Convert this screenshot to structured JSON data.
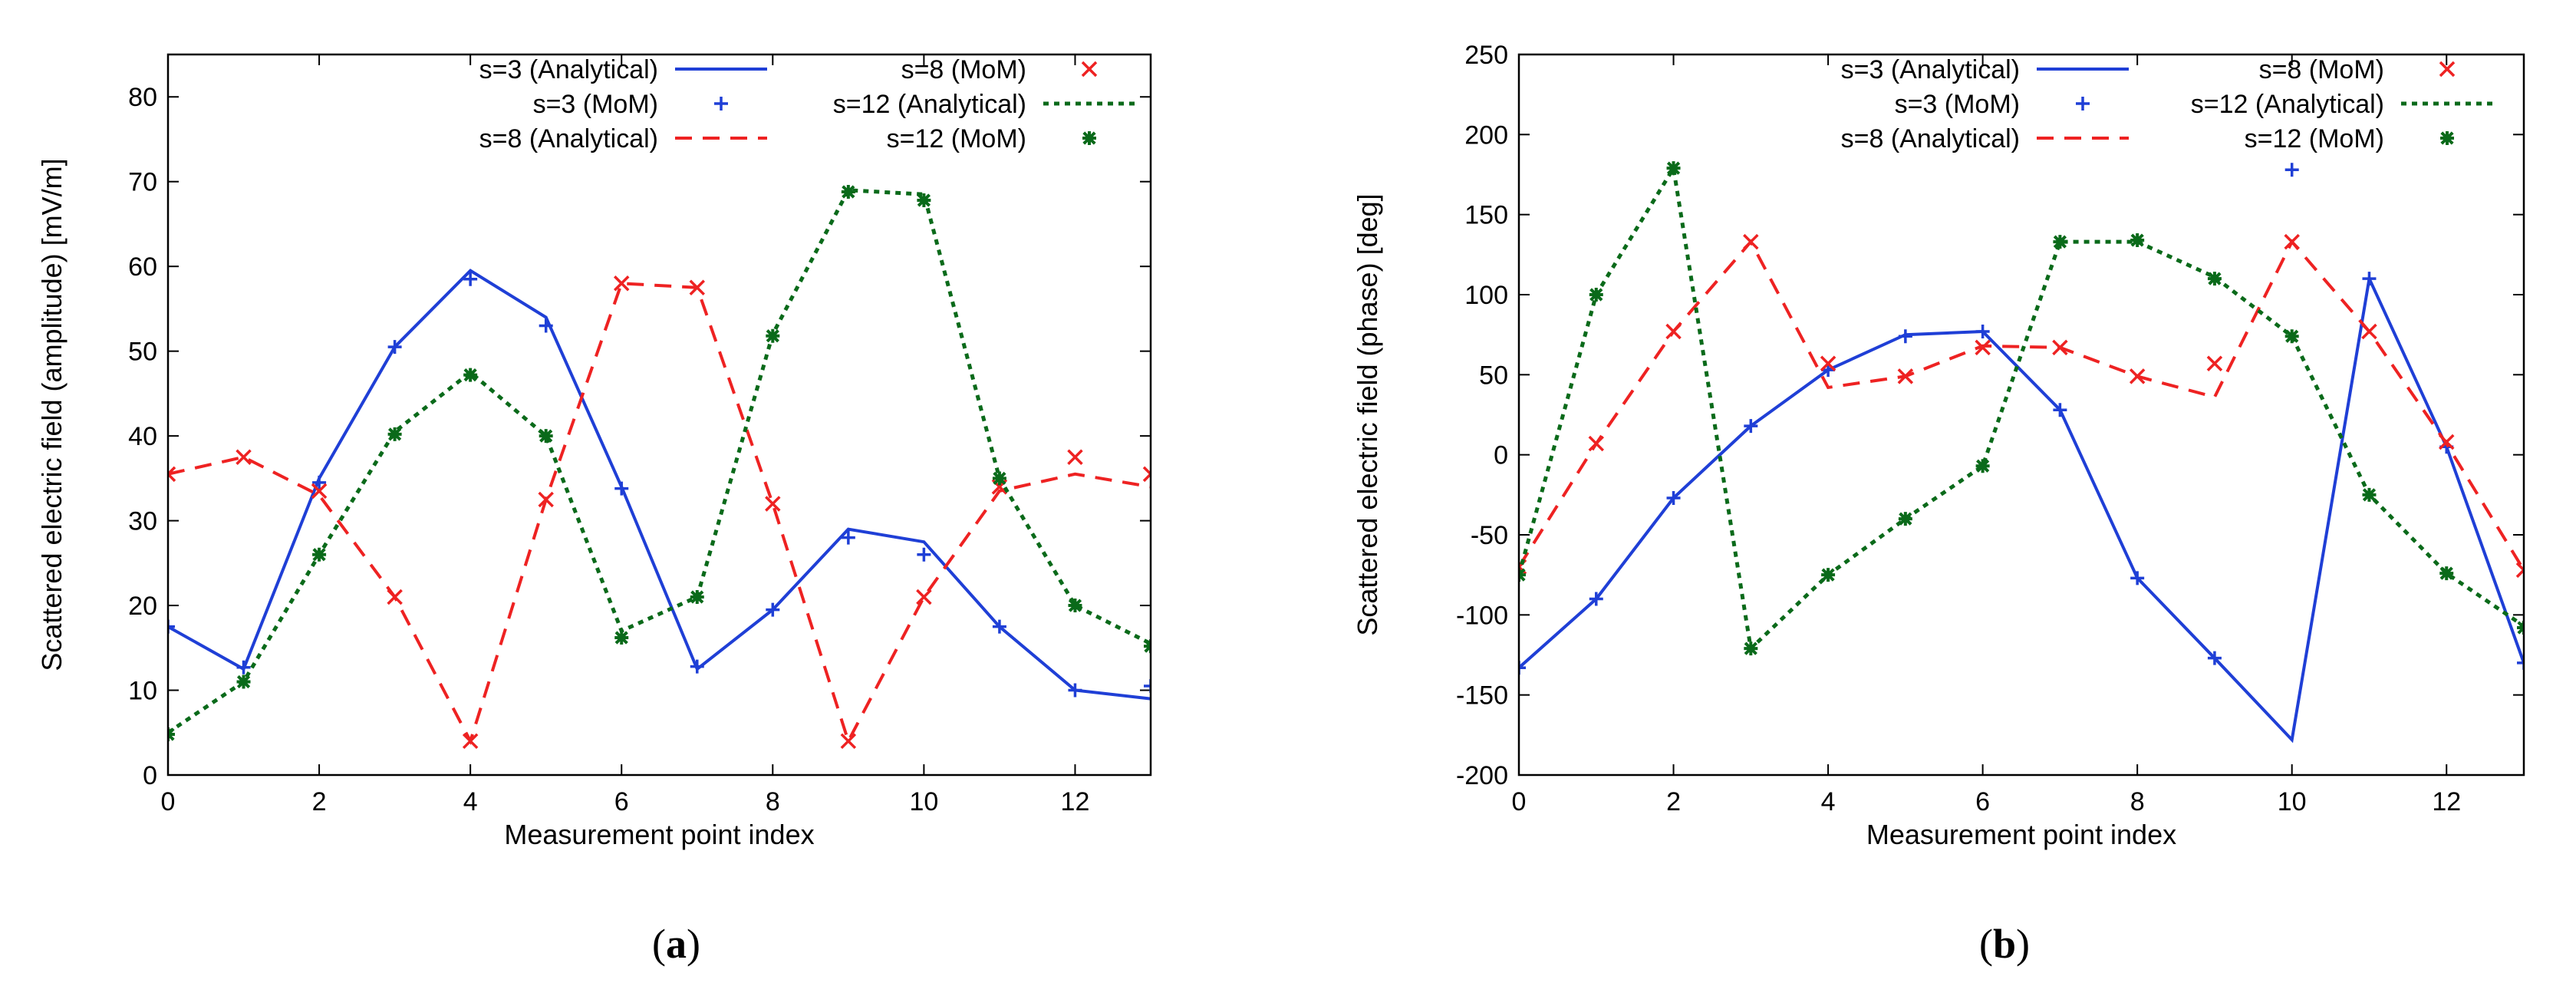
{
  "figure": {
    "panels": [
      {
        "label_open": "(",
        "label_letter": "a",
        "label_close": ")"
      },
      {
        "label_open": "(",
        "label_letter": "b",
        "label_close": ")"
      }
    ]
  },
  "styles": {
    "s3": {
      "color": "#1f3fd6",
      "line": "solid",
      "marker": "plus"
    },
    "s8": {
      "color": "#ee2222",
      "line": "dashed",
      "marker": "cross"
    },
    "s12": {
      "color": "#0a6a1a",
      "line": "dotted",
      "marker": "star"
    }
  },
  "chart_data": [
    {
      "type": "line",
      "title": "",
      "xlabel": "Measurement point index",
      "ylabel": "Scattered electric field (amplitude) [mV/m]",
      "xlim": [
        0,
        13
      ],
      "ylim": [
        0,
        85
      ],
      "xticks": [
        0,
        2,
        4,
        6,
        8,
        10,
        12
      ],
      "yticks": [
        0,
        10,
        20,
        30,
        40,
        50,
        60,
        70,
        80
      ],
      "x": [
        0,
        1,
        2,
        3,
        4,
        5,
        6,
        7,
        8,
        9,
        10,
        11,
        12,
        13
      ],
      "series": [
        {
          "name": "s=3 (Analytical)",
          "kind": "line",
          "style": "s3",
          "values": [
            17.5,
            12.5,
            35,
            50.5,
            59.5,
            54,
            34,
            12.5,
            19.5,
            29,
            27.5,
            17.5,
            10,
            9
          ]
        },
        {
          "name": "s=3 (MoM)",
          "kind": "marker",
          "style": "s3",
          "values": [
            17.5,
            12.7,
            34.5,
            50.5,
            58.5,
            53,
            33.8,
            12.8,
            19.5,
            28,
            26,
            17.5,
            10,
            10.5
          ]
        },
        {
          "name": "s=8 (Analytical)",
          "kind": "line",
          "style": "s8",
          "values": [
            35.5,
            37.5,
            33,
            21,
            4,
            32.5,
            58,
            57.5,
            32,
            4,
            21,
            33.5,
            35.5,
            34
          ]
        },
        {
          "name": "s=8 (MoM)",
          "kind": "marker",
          "style": "s8",
          "values": [
            35.5,
            37.5,
            33.5,
            21,
            4,
            32.5,
            58,
            57.5,
            32,
            4,
            21,
            34,
            37.5,
            35.5
          ]
        },
        {
          "name": "s=12 (Analytical)",
          "kind": "line",
          "style": "s12",
          "values": [
            5,
            11,
            26,
            40.5,
            47.5,
            40,
            17,
            21,
            52,
            69,
            68.5,
            35,
            20,
            15.5
          ]
        },
        {
          "name": "s=12 (MoM)",
          "kind": "marker",
          "style": "s12",
          "values": [
            4.8,
            11,
            26,
            40.2,
            47.2,
            40,
            16.2,
            21,
            51.8,
            68.8,
            67.8,
            35,
            20,
            15.2
          ]
        }
      ],
      "legend": {
        "placement": "top",
        "left": [
          "s=3 (Analytical)",
          "s=3 (MoM)",
          "s=8 (Analytical)"
        ],
        "right": [
          "s=8 (MoM)",
          "s=12 (Analytical)",
          "s=12 (MoM)"
        ]
      }
    },
    {
      "type": "line",
      "title": "",
      "xlabel": "Measurement point index",
      "ylabel": "Scattered electric field (phase) [deg]",
      "xlim": [
        0,
        13
      ],
      "ylim": [
        -200,
        250
      ],
      "xticks": [
        0,
        2,
        4,
        6,
        8,
        10,
        12
      ],
      "yticks": [
        -200,
        -150,
        -100,
        -50,
        0,
        50,
        100,
        150,
        200,
        250
      ],
      "x": [
        0,
        1,
        2,
        3,
        4,
        5,
        6,
        7,
        8,
        9,
        10,
        11,
        12,
        13
      ],
      "series": [
        {
          "name": "s=3 (Analytical)",
          "kind": "line",
          "style": "s3",
          "values": [
            -133,
            -90,
            -27,
            18,
            53,
            75,
            77,
            28,
            -77,
            -127,
            -178,
            110,
            5,
            -130
          ]
        },
        {
          "name": "s=3 (MoM)",
          "kind": "marker",
          "style": "s3",
          "values": [
            -133,
            -90,
            -27,
            18,
            53,
            74,
            77,
            28,
            -77,
            -127,
            178,
            110,
            5,
            -130
          ]
        },
        {
          "name": "s=8 (Analytical)",
          "kind": "line",
          "style": "s8",
          "values": [
            -70,
            7,
            77,
            133,
            42,
            49,
            68,
            67,
            49,
            36,
            133,
            77,
            7,
            -72
          ]
        },
        {
          "name": "s=8 (MoM)",
          "kind": "marker",
          "style": "s8",
          "values": [
            -70,
            7,
            77,
            133,
            57,
            49,
            67,
            67,
            49,
            57,
            133,
            77,
            8,
            -72
          ]
        },
        {
          "name": "s=12 (Analytical)",
          "kind": "line",
          "style": "s12",
          "values": [
            -75,
            100,
            179,
            -121,
            -75,
            -40,
            -7,
            133,
            133,
            111,
            74,
            -25,
            -74,
            -107
          ]
        },
        {
          "name": "s=12 (MoM)",
          "kind": "marker",
          "style": "s12",
          "values": [
            -75,
            100,
            179,
            -121,
            -75,
            -40,
            -7,
            133,
            134,
            110,
            74,
            -25,
            -74,
            -108
          ]
        }
      ],
      "legend": {
        "placement": "top",
        "left": [
          "s=3 (Analytical)",
          "s=3 (MoM)",
          "s=8 (Analytical)"
        ],
        "right": [
          "s=8 (MoM)",
          "s=12 (Analytical)",
          "s=12 (MoM)"
        ]
      }
    }
  ]
}
